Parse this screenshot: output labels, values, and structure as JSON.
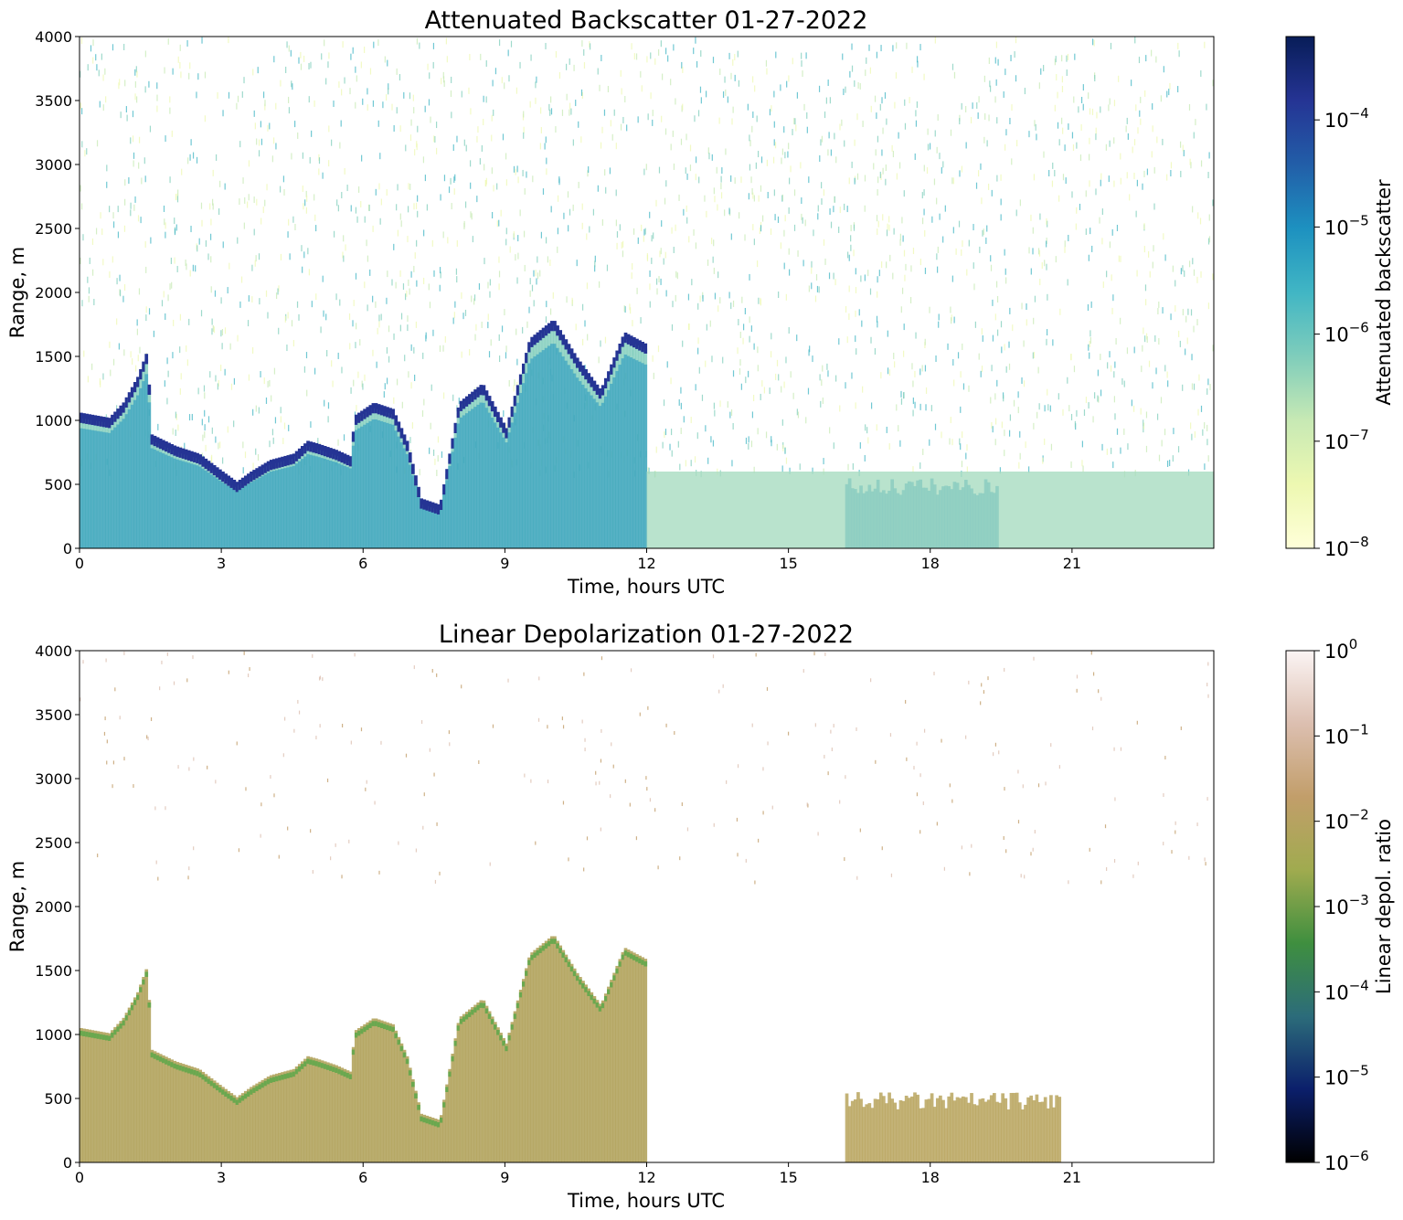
{
  "chart_data": [
    {
      "type": "heatmap",
      "title": "Attenuated Backscatter 01-27-2022",
      "xlabel": "Time, hours UTC",
      "ylabel": "Range, m",
      "xlim": [
        0,
        24
      ],
      "ylim": [
        0,
        4000
      ],
      "xticks": [
        "0",
        "3",
        "6",
        "9",
        "12",
        "15",
        "18",
        "21"
      ],
      "yticks": [
        "0",
        "500",
        "1000",
        "1500",
        "2000",
        "2500",
        "3000",
        "3500",
        "4000"
      ],
      "colorbar": {
        "label": "Attenuated backscatter",
        "scale": "log",
        "range": [
          1e-08,
          0.0006
        ],
        "ticks": [
          {
            "value": 1e-08,
            "base": "10",
            "exp": "−8"
          },
          {
            "value": 1e-07,
            "base": "10",
            "exp": "−7"
          },
          {
            "value": 1e-06,
            "base": "10",
            "exp": "−6"
          },
          {
            "value": 1e-05,
            "base": "10",
            "exp": "−5"
          },
          {
            "value": 0.0001,
            "base": "10",
            "exp": "−4"
          }
        ],
        "colors": [
          "#ffffd9",
          "#edf8b1",
          "#c7e9b4",
          "#7fcdbb",
          "#41b6c4",
          "#1d91c0",
          "#225ea8",
          "#253494",
          "#081d58"
        ]
      },
      "cloud_layer_trace": {
        "time_hours": [
          0,
          0.3,
          0.6,
          0.9,
          1.2,
          1.4,
          1.5,
          2.0,
          2.5,
          3.0,
          3.3,
          3.6,
          4.0,
          4.5,
          4.8,
          5.0,
          5.4,
          5.7,
          5.8,
          6.2,
          6.6,
          6.9,
          7.2,
          7.6,
          8.0,
          8.5,
          9.0,
          9.5,
          10.0,
          10.5,
          11.0,
          11.5,
          12.0
        ],
        "range_m": [
          1020,
          1000,
          980,
          1100,
          1300,
          1500,
          850,
          760,
          700,
          560,
          480,
          560,
          650,
          700,
          800,
          780,
          730,
          680,
          1000,
          1100,
          1050,
          800,
          350,
          300,
          1100,
          1250,
          900,
          1600,
          1750,
          1450,
          1200,
          1650,
          1550
        ]
      },
      "low_cloud_patch": {
        "start_hour": 16.2,
        "end_hour": 19.4,
        "top_m": 550
      },
      "regions": [
        "low clouds 0–12 UTC",
        "low clouds 16–19.5 UTC"
      ]
    },
    {
      "type": "heatmap",
      "title": "Linear Depolarization 01-27-2022",
      "xlabel": "Time, hours UTC",
      "ylabel": "Range, m",
      "xlim": [
        0,
        24
      ],
      "ylim": [
        0,
        4000
      ],
      "xticks": [
        "0",
        "3",
        "6",
        "9",
        "12",
        "15",
        "18",
        "21"
      ],
      "yticks": [
        "0",
        "500",
        "1000",
        "1500",
        "2000",
        "2500",
        "3000",
        "3500",
        "4000"
      ],
      "colorbar": {
        "label": "Linear depol. ratio",
        "scale": "log",
        "range": [
          1e-06,
          1
        ],
        "ticks": [
          {
            "value": 1e-06,
            "base": "10",
            "exp": "−6"
          },
          {
            "value": 1e-05,
            "base": "10",
            "exp": "−5"
          },
          {
            "value": 0.0001,
            "base": "10",
            "exp": "−4"
          },
          {
            "value": 0.001,
            "base": "10",
            "exp": "−3"
          },
          {
            "value": 0.01,
            "base": "10",
            "exp": "−2"
          },
          {
            "value": 0.1,
            "base": "10",
            "exp": "−1"
          },
          {
            "value": 1,
            "base": "10",
            "exp": "0"
          }
        ],
        "colors": [
          "#000000",
          "#0b1f6b",
          "#2c6c7a",
          "#3f8f3f",
          "#a0ab4f",
          "#c29e6a",
          "#dcbfb0",
          "#fbf4f4"
        ]
      },
      "cloud_layer_trace": {
        "time_hours": [
          0,
          0.3,
          0.6,
          0.9,
          1.2,
          1.4,
          1.5,
          2.0,
          2.5,
          3.0,
          3.3,
          3.6,
          4.0,
          4.5,
          4.8,
          5.0,
          5.4,
          5.7,
          5.8,
          6.2,
          6.6,
          6.9,
          7.2,
          7.6,
          8.0,
          8.5,
          9.0,
          9.5,
          10.0,
          10.5,
          11.0,
          11.5,
          12.0
        ],
        "range_m": [
          1020,
          1000,
          980,
          1100,
          1300,
          1500,
          850,
          760,
          700,
          560,
          480,
          560,
          650,
          700,
          800,
          780,
          730,
          680,
          1000,
          1100,
          1050,
          800,
          350,
          300,
          1100,
          1250,
          900,
          1600,
          1750,
          1450,
          1200,
          1650,
          1550
        ]
      },
      "low_cloud_patch": {
        "start_hour": 16.2,
        "end_hour": 20.7,
        "top_m": 550
      }
    }
  ]
}
